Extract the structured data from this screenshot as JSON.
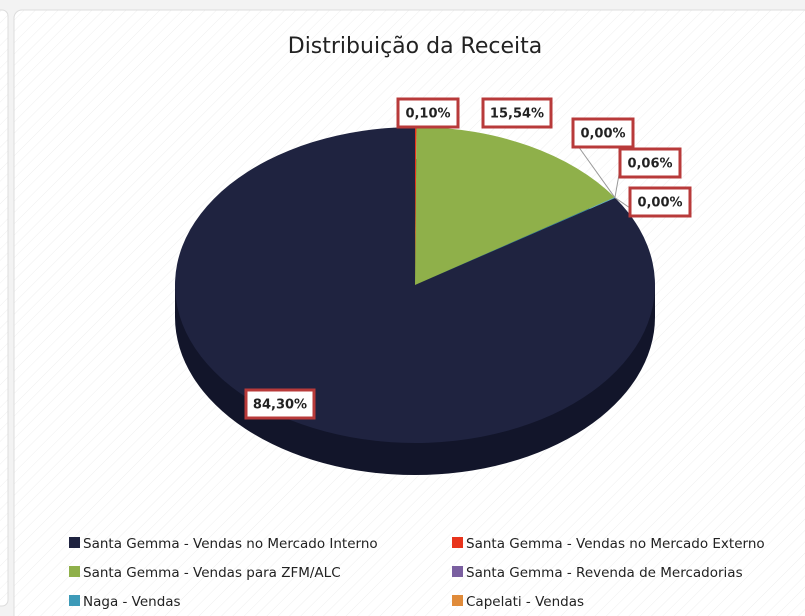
{
  "chart_data": {
    "type": "pie",
    "title": "Distribuição da Receita",
    "series": [
      {
        "name": "Santa Gemma - Vendas no Mercado Interno",
        "color": "#1f2340",
        "values": [
          84.3
        ],
        "value_labels": [
          "84,30%"
        ]
      },
      {
        "name": "Santa Gemma - Vendas no Mercado Externo",
        "color": "#e8341c",
        "values": [
          0.1
        ],
        "value_labels": [
          "0,10%"
        ]
      },
      {
        "name": "Santa Gemma - Vendas para ZFM/ALC",
        "color": "#8fb04a",
        "values": [
          15.54
        ],
        "value_labels": [
          "15,54%"
        ]
      },
      {
        "name": "Santa Gemma - Revenda de Mercadorias",
        "color": "#7a5fa0",
        "values": [
          0.0
        ],
        "value_labels": [
          "0,00%"
        ]
      },
      {
        "name": "Naga - Vendas",
        "color": "#3d9ab8",
        "values": [
          0.06
        ],
        "value_labels": [
          "0,06%"
        ]
      },
      {
        "name": "Capelati - Vendas",
        "color": "#e08b3a",
        "values": [
          0.0
        ],
        "value_labels": [
          "0,00%"
        ]
      }
    ]
  }
}
